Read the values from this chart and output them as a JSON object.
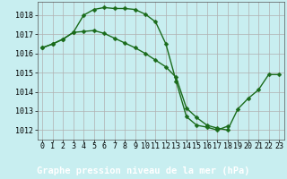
{
  "title": "Graphe pression niveau de la mer (hPa)",
  "background_color": "#c8eef0",
  "label_bg_color": "#2d6e2d",
  "label_text_color": "#ffffff",
  "grid_color": "#b0b0b0",
  "line_color": "#1a6b1a",
  "marker_color": "#1a6b1a",
  "xlim": [
    -0.5,
    23.5
  ],
  "ylim": [
    1011.5,
    1018.7
  ],
  "yticks": [
    1012,
    1013,
    1014,
    1015,
    1016,
    1017,
    1018
  ],
  "xticks": [
    0,
    1,
    2,
    3,
    4,
    5,
    6,
    7,
    8,
    9,
    10,
    11,
    12,
    13,
    14,
    15,
    16,
    17,
    18,
    19,
    20,
    21,
    22,
    23
  ],
  "series1_x": [
    0,
    1,
    2,
    3,
    4,
    5,
    6,
    7,
    8,
    9,
    10,
    11,
    12,
    13,
    14,
    15,
    16,
    17,
    18
  ],
  "series1_y": [
    1016.3,
    1016.5,
    1016.75,
    1017.1,
    1018.0,
    1018.3,
    1018.4,
    1018.35,
    1018.35,
    1018.3,
    1018.05,
    1017.65,
    1016.5,
    1014.55,
    1012.7,
    1012.25,
    1012.15,
    1012.0,
    1012.2
  ],
  "series2_x": [
    0,
    1,
    2,
    3,
    4,
    5,
    6,
    7,
    8,
    9,
    10,
    11,
    12,
    13,
    14,
    15,
    16,
    17,
    18,
    19,
    20,
    21,
    22,
    23
  ],
  "series2_y": [
    1016.3,
    1016.5,
    1016.75,
    1017.1,
    1017.15,
    1017.2,
    1017.05,
    1016.8,
    1016.55,
    1016.3,
    1016.0,
    1015.65,
    1015.3,
    1014.75,
    1013.15,
    1012.65,
    1012.25,
    1012.1,
    1012.0,
    1013.1,
    1013.65,
    1014.1,
    1014.9,
    1014.9
  ],
  "tick_fontsize": 6.0,
  "label_fontsize": 7.5,
  "line_width": 1.0,
  "marker_size": 2.5
}
